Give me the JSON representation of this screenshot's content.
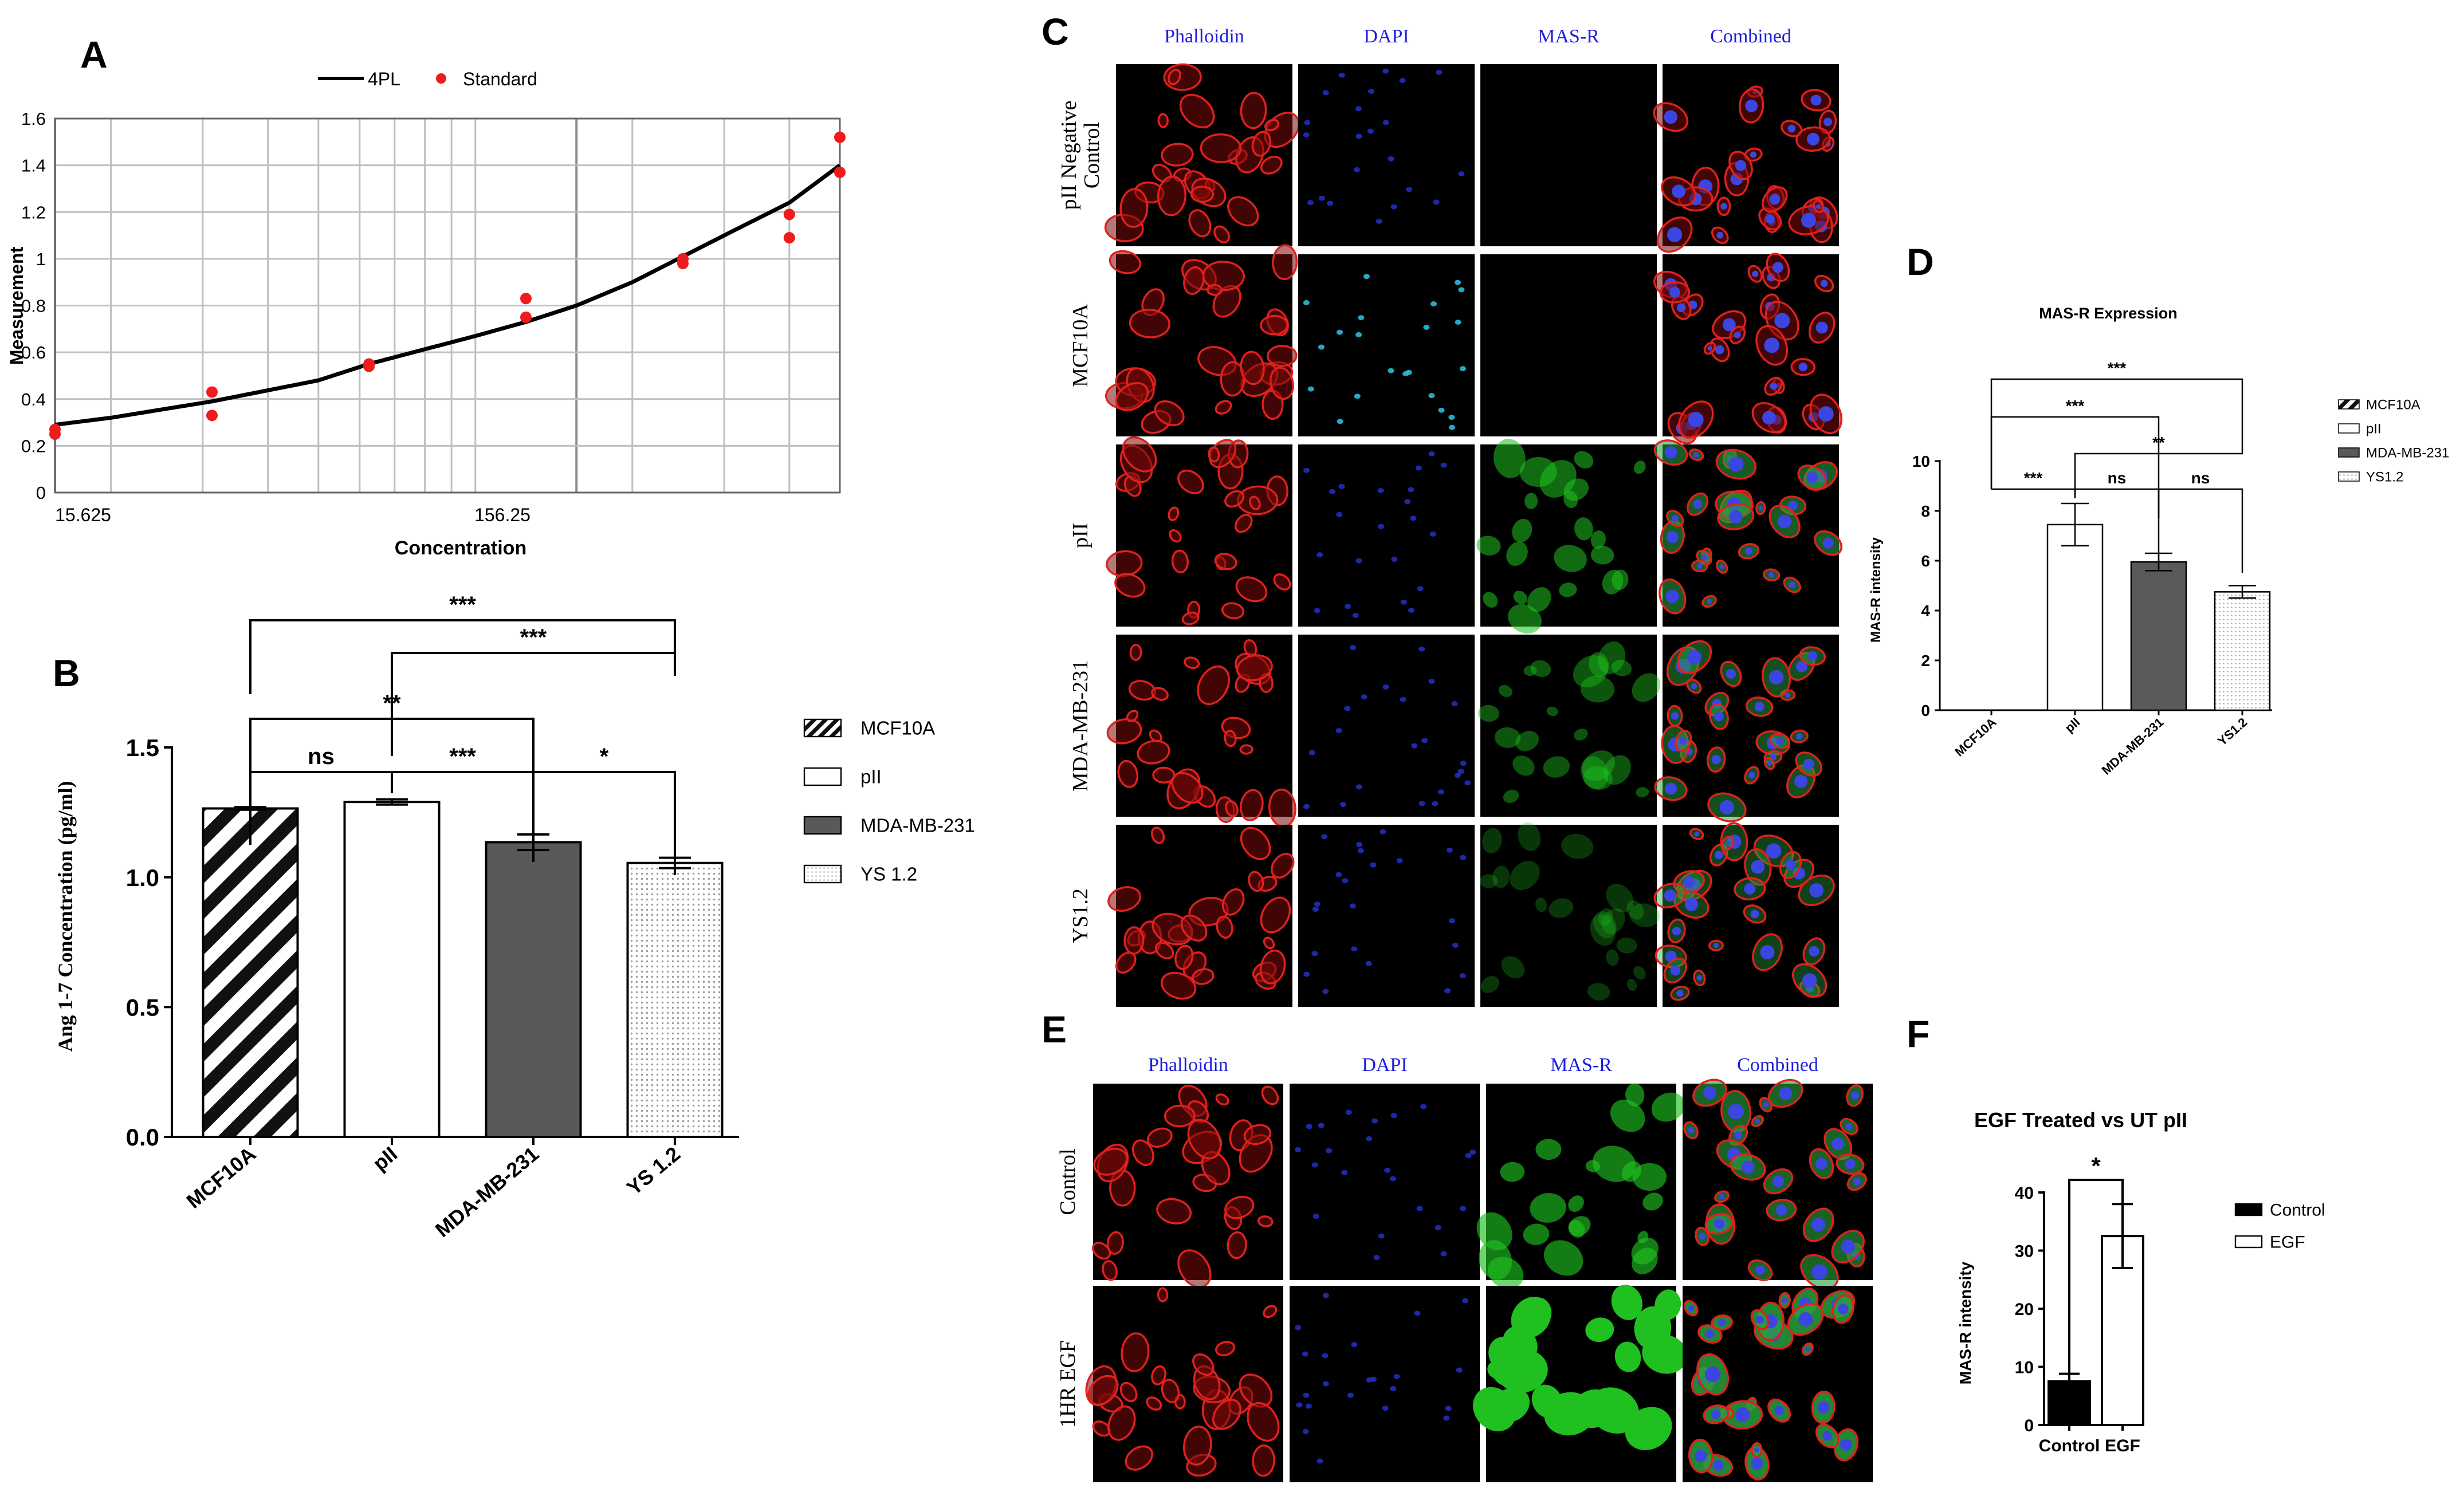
{
  "panel_letters": {
    "a": "A",
    "b": "B",
    "c": "C",
    "d": "D",
    "e": "E",
    "f": "F"
  },
  "chart_data": [
    {
      "panel": "A",
      "type": "scatter",
      "xlabel": "Concentration",
      "ylabel": "Measurement",
      "x_scale": "log",
      "x_tick_labels": [
        "15.625",
        "156.25"
      ],
      "y_tick_labels": [
        "0",
        "0.2",
        "0.4",
        "0.6",
        "0.8",
        "1",
        "1.2",
        "1.4",
        "1.6"
      ],
      "ylim": [
        0,
        1.6
      ],
      "xlim": [
        15.625,
        500
      ],
      "grid": true,
      "legend": {
        "placement": "top",
        "entries": [
          "4PL",
          "Standard"
        ]
      },
      "series": [
        {
          "name": "4PL",
          "type": "line",
          "color": "#000000",
          "x": [
            15.625,
            20,
            31.25,
            50,
            62.5,
            100,
            125,
            156.25,
            200,
            250,
            312.5,
            400,
            500
          ],
          "y": [
            0.29,
            0.32,
            0.39,
            0.48,
            0.55,
            0.67,
            0.73,
            0.8,
            0.9,
            1.01,
            1.12,
            1.24,
            1.4
          ]
        },
        {
          "name": "Standard",
          "type": "scatter",
          "color": "#ee1c1c",
          "x": [
            15.625,
            15.625,
            31.25,
            31.25,
            62.5,
            62.5,
            125,
            125,
            250,
            250,
            400,
            400,
            500,
            500
          ],
          "y": [
            0.27,
            0.25,
            0.43,
            0.33,
            0.55,
            0.54,
            0.83,
            0.75,
            1.0,
            0.98,
            1.19,
            1.09,
            1.52,
            1.37
          ]
        }
      ]
    },
    {
      "panel": "B",
      "type": "bar",
      "categories": [
        "MCF10A",
        "pII",
        "MDA-MB-231",
        "YS 1.2"
      ],
      "values": [
        1.265,
        1.29,
        1.135,
        1.055
      ],
      "errors": [
        0.005,
        0.01,
        0.03,
        0.02
      ],
      "ylabel": "Ang 1-7 Concentration (pg/ml)",
      "ylim": [
        0,
        1.5
      ],
      "y_tick_labels": [
        "0.0",
        "0.5",
        "1.0",
        "1.5"
      ],
      "legend": {
        "placement": "right",
        "entries": [
          "MCF10A",
          "pII",
          "MDA-MB-231",
          "YS 1.2"
        ]
      },
      "significance": [
        {
          "from": 0,
          "to": 3,
          "label": "***"
        },
        {
          "from": 1,
          "to": 3,
          "label": "***"
        },
        {
          "from": 0,
          "to": 2,
          "label": "**"
        },
        {
          "from": 0,
          "to": 1,
          "label": "ns"
        },
        {
          "from": 1,
          "to": 2,
          "label": "***"
        },
        {
          "from": 2,
          "to": 3,
          "label": "*"
        }
      ]
    },
    {
      "panel": "D",
      "type": "bar",
      "title": "MAS-R Expression",
      "categories": [
        "MCF10A",
        "pII",
        "MDA-MB-231",
        "YS1.2"
      ],
      "values": [
        0,
        7.45,
        5.95,
        4.75
      ],
      "errors": [
        0,
        0.85,
        0.35,
        0.25
      ],
      "ylabel": "MAS-R intensity",
      "ylim": [
        0,
        10
      ],
      "y_tick_labels": [
        "0",
        "2",
        "4",
        "6",
        "8",
        "10"
      ],
      "legend": {
        "placement": "right",
        "entries": [
          "MCF10A",
          "pII",
          "MDA-MB-231",
          "YS1.2"
        ]
      },
      "significance": [
        {
          "from": 0,
          "to": 3,
          "label": "***"
        },
        {
          "from": 0,
          "to": 2,
          "label": "***"
        },
        {
          "from": 1,
          "to": 3,
          "label": "**"
        },
        {
          "from": 0,
          "to": 1,
          "label": "***"
        },
        {
          "from": 1,
          "to": 2,
          "label": "ns"
        },
        {
          "from": 2,
          "to": 3,
          "label": "ns"
        }
      ]
    },
    {
      "panel": "F",
      "type": "bar",
      "title": "EGF Treated vs UT pII",
      "categories": [
        "Control",
        "EGF"
      ],
      "values": [
        7.5,
        32.5
      ],
      "errors": [
        1.3,
        5.5
      ],
      "ylabel": "MAS-R intensity",
      "ylim": [
        0,
        40
      ],
      "y_tick_labels": [
        "0",
        "10",
        "20",
        "30",
        "40"
      ],
      "legend": {
        "placement": "right",
        "entries": [
          "Control",
          "EGF"
        ]
      },
      "significance": [
        {
          "from": 0,
          "to": 1,
          "label": "*"
        }
      ]
    }
  ],
  "microscopy": {
    "panel_c": {
      "columns": [
        "Phalloidin",
        "DAPI",
        "MAS-R",
        "Combined"
      ],
      "rows": [
        "pII Negative Control",
        "MCF10A",
        "pII",
        "MDA-MB-231",
        "YS1.2"
      ],
      "row_label_lines": [
        [
          "pII Negative",
          "Control"
        ],
        [
          "MCF10A"
        ],
        [
          "pII"
        ],
        [
          "MDA-MB-231"
        ],
        [
          "YS1.2"
        ]
      ],
      "mas_r_level": [
        0.0,
        0.0,
        0.45,
        0.3,
        0.12
      ]
    },
    "panel_e": {
      "columns": [
        "Phalloidin",
        "DAPI",
        "MAS-R",
        "Combined"
      ],
      "rows": [
        "Control",
        "1HR EGF"
      ],
      "mas_r_level": [
        0.55,
        1.0
      ]
    },
    "colors": {
      "column_title": "#1d1ddc",
      "phalloidin": "#e0201e",
      "dapi": "#2230c8",
      "mcf_dapi": "#2cc6e6",
      "mas_r": "#1fc01f"
    }
  }
}
